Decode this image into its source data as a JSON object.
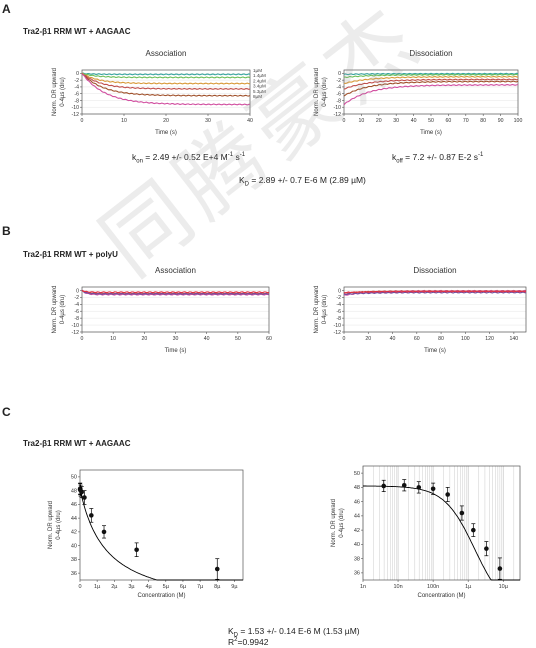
{
  "panels": {
    "A": {
      "letter": "A",
      "title": "Tra2-β1 RRM WT + AAGAAC"
    },
    "B": {
      "letter": "B",
      "title": "Tra2-β1 RRM WT + polyU"
    },
    "C": {
      "letter": "C",
      "title": "Tra2-β1 RRM WT + AAGAAC"
    }
  },
  "equations": {
    "kon": {
      "pre": "k",
      "sub": "on",
      "mid": " = 2.49 +/- 0.52 E+4 M",
      "sup1": "-1",
      "mid2": " s",
      "sup2": "-1"
    },
    "koff": {
      "pre": "k",
      "sub": "off",
      "mid": " = 7.2 +/- 0.87 E-2 s",
      "sup": "-1"
    },
    "kdA": {
      "pre": "K",
      "sub": "D",
      "mid": " = 2.89 +/- 0.7 E-6 M (2.89 µM)"
    },
    "kdC": {
      "pre": "K",
      "sub": "D",
      "mid": " = 1.53 +/- 0.14 E-6 M (1.53 µM)"
    },
    "r2": {
      "pre": "R",
      "sup": "2",
      "mid": "=0.9942"
    }
  },
  "watermark": "同腾豪杰",
  "colors": {
    "fit": "#000000",
    "grid": "#cccccc"
  },
  "chart_data": [
    {
      "id": "A_assoc",
      "type": "line",
      "title": "Association",
      "xlabel": "Time (s)",
      "ylabel": "Norm. DR upward\n0-4µs (dru)",
      "xlim": [
        0,
        40
      ],
      "ylim": [
        -12,
        1
      ],
      "xticks": [
        0,
        10,
        20,
        30,
        40
      ],
      "xtick_labels": [
        "0",
        "10",
        "20",
        "30",
        "40"
      ],
      "yticks": [
        0,
        -2,
        -4,
        -6,
        -8,
        -10,
        -12
      ],
      "ytick_labels": [
        "0",
        "-2",
        "-4",
        "-6",
        "-8",
        "-10",
        "-12"
      ],
      "legend_position": "right",
      "series": [
        {
          "name": "1µM",
          "color": "#3aa6a0",
          "plateau": -0.3,
          "k": 0.35
        },
        {
          "name": "1.4µM",
          "color": "#6fbf5a",
          "plateau": -1.2,
          "k": 0.3
        },
        {
          "name": "2.4µM",
          "color": "#d89a3a",
          "plateau": -3.0,
          "k": 0.25
        },
        {
          "name": "3.4µM",
          "color": "#c0504d",
          "plateau": -4.6,
          "k": 0.22
        },
        {
          "name": "5.3µM",
          "color": "#a0522d",
          "plateau": -6.6,
          "k": 0.2
        },
        {
          "name": "8µM",
          "color": "#d14fa0",
          "plateau": -9.2,
          "k": 0.18
        }
      ]
    },
    {
      "id": "A_dissoc",
      "type": "line",
      "title": "Dissociation",
      "xlabel": "Time (s)",
      "ylabel": "Norm. DR upward\n0-4µs (dru)",
      "xlim": [
        0,
        100
      ],
      "ylim": [
        -12,
        1
      ],
      "xticks": [
        0,
        10,
        20,
        30,
        40,
        50,
        60,
        70,
        80,
        90,
        100
      ],
      "xtick_labels": [
        "0",
        "10",
        "20",
        "30",
        "40",
        "50",
        "60",
        "70",
        "80",
        "90",
        "100"
      ],
      "yticks": [
        0,
        -2,
        -4,
        -6,
        -8,
        -10,
        -12
      ],
      "ytick_labels": [
        "0",
        "-2",
        "-4",
        "-6",
        "-8",
        "-10",
        "-12"
      ],
      "series": [
        {
          "name": "1µM",
          "color": "#3aa6a0",
          "start": -0.3,
          "end": -0.1,
          "k": 0.07
        },
        {
          "name": "1.4µM",
          "color": "#6fbf5a",
          "start": -1.2,
          "end": -0.4,
          "k": 0.07
        },
        {
          "name": "2.4µM",
          "color": "#d89a3a",
          "start": -3.0,
          "end": -1.0,
          "k": 0.07
        },
        {
          "name": "3.4µM",
          "color": "#c0504d",
          "start": -4.6,
          "end": -1.8,
          "k": 0.07
        },
        {
          "name": "5.3µM",
          "color": "#a0522d",
          "start": -6.6,
          "end": -2.4,
          "k": 0.07
        },
        {
          "name": "8µM",
          "color": "#d14fa0",
          "start": -9.2,
          "end": -3.4,
          "k": 0.07
        }
      ]
    },
    {
      "id": "B_assoc",
      "type": "line",
      "title": "Association",
      "xlabel": "Time (s)",
      "ylabel": "Norm. DR upward\n0-4µs (dru)",
      "xlim": [
        0,
        60
      ],
      "ylim": [
        -12,
        1
      ],
      "xticks": [
        0,
        10,
        20,
        30,
        40,
        50,
        60
      ],
      "xtick_labels": [
        "0",
        "10",
        "20",
        "30",
        "40",
        "50",
        "60"
      ],
      "yticks": [
        0,
        -2,
        -4,
        -6,
        -8,
        -10,
        -12
      ],
      "ytick_labels": [
        "0",
        "-2",
        "-4",
        "-6",
        "-8",
        "-10",
        "-12"
      ],
      "series": [
        {
          "color": "#c0504d",
          "plateau": -0.8,
          "k": 0.8
        },
        {
          "color": "#d14fa0",
          "plateau": -1.2,
          "k": 0.8
        },
        {
          "color": "#6f4fa0",
          "plateau": -1.0,
          "k": 0.8
        },
        {
          "color": "#e03040",
          "plateau": -0.5,
          "k": 0.8
        }
      ]
    },
    {
      "id": "B_dissoc",
      "type": "line",
      "title": "Dissociation",
      "xlabel": "Time (s)",
      "ylabel": "Norm. DR upward\n0-4µs (dru)",
      "xlim": [
        0,
        150
      ],
      "ylim": [
        -12,
        1
      ],
      "xticks": [
        0,
        20,
        40,
        60,
        80,
        100,
        120,
        140
      ],
      "xtick_labels": [
        "0",
        "20",
        "40",
        "60",
        "80",
        "100",
        "120",
        "140"
      ],
      "yticks": [
        0,
        -2,
        -4,
        -6,
        -8,
        -10,
        -12
      ],
      "ytick_labels": [
        "0",
        "-2",
        "-4",
        "-6",
        "-8",
        "-10",
        "-12"
      ],
      "series": [
        {
          "color": "#c0504d",
          "start": -0.8,
          "end": -0.1,
          "k": 0.05
        },
        {
          "color": "#d14fa0",
          "start": -1.4,
          "end": -0.2,
          "k": 0.05
        },
        {
          "color": "#6f4fa0",
          "start": -1.1,
          "end": -0.6,
          "k": 0.05
        },
        {
          "color": "#e03040",
          "start": -0.6,
          "end": -0.3,
          "k": 0.05
        }
      ]
    },
    {
      "id": "C_linear",
      "type": "scatter",
      "xlabel": "Concentration (M)",
      "ylabel": "Norm. DR upward\n0-4µs (dru)",
      "xlim": [
        0,
        9.5e-06
      ],
      "ylim": [
        35,
        51
      ],
      "xticks": [
        0,
        1e-06,
        2e-06,
        3e-06,
        4e-06,
        5e-06,
        6e-06,
        7e-06,
        8e-06,
        9e-06
      ],
      "xtick_labels": [
        "0",
        "1µ",
        "2µ",
        "3µ",
        "4µ",
        "5µ",
        "6µ",
        "7µ",
        "8µ",
        "9µ"
      ],
      "yticks": [
        36,
        38,
        40,
        42,
        44,
        46,
        48,
        50
      ],
      "ytick_labels": [
        "36",
        "38",
        "40",
        "42",
        "44",
        "46",
        "48",
        "50"
      ],
      "points": [
        {
          "x": 3.9e-09,
          "y": 48.2,
          "err": 0.8
        },
        {
          "x": 1.5e-08,
          "y": 48.3,
          "err": 0.8
        },
        {
          "x": 3.9e-08,
          "y": 48.0,
          "err": 0.8
        },
        {
          "x": 1e-07,
          "y": 47.8,
          "err": 0.8
        },
        {
          "x": 2.6e-07,
          "y": 47.0,
          "err": 1.0
        },
        {
          "x": 6.6e-07,
          "y": 44.4,
          "err": 1.0
        },
        {
          "x": 1.4e-06,
          "y": 42.0,
          "err": 0.9
        },
        {
          "x": 3.3e-06,
          "y": 39.4,
          "err": 1.0
        },
        {
          "x": 8e-06,
          "y": 36.6,
          "err": 1.5
        }
      ],
      "fit": {
        "top": 48.2,
        "bottom": 30.5,
        "kd": 1.53e-06
      }
    },
    {
      "id": "C_log",
      "type": "scatter",
      "xlabel": "Concentration (M)",
      "ylabel": "Norm. DR upward\n0-4µs (dru)",
      "xscale": "log",
      "xlim": [
        1e-09,
        3e-05
      ],
      "ylim": [
        35,
        51
      ],
      "xticks": [
        1e-09,
        1e-08,
        1e-07,
        1e-06,
        1e-05
      ],
      "xtick_labels": [
        "1n",
        "10n",
        "100n",
        "1µ",
        "10µ"
      ],
      "yticks": [
        36,
        38,
        40,
        42,
        44,
        46,
        48,
        50
      ],
      "ytick_labels": [
        "36",
        "38",
        "40",
        "42",
        "44",
        "46",
        "48",
        "50"
      ],
      "grid": true,
      "points": [
        {
          "x": 3.9e-09,
          "y": 48.2,
          "err": 0.8
        },
        {
          "x": 1.5e-08,
          "y": 48.3,
          "err": 0.8
        },
        {
          "x": 3.9e-08,
          "y": 48.0,
          "err": 0.8
        },
        {
          "x": 1e-07,
          "y": 47.8,
          "err": 0.8
        },
        {
          "x": 2.6e-07,
          "y": 47.0,
          "err": 1.0
        },
        {
          "x": 6.6e-07,
          "y": 44.4,
          "err": 1.0
        },
        {
          "x": 1.4e-06,
          "y": 42.0,
          "err": 0.9
        },
        {
          "x": 3.3e-06,
          "y": 39.4,
          "err": 1.0
        },
        {
          "x": 8e-06,
          "y": 36.6,
          "err": 1.5
        }
      ],
      "fit": {
        "top": 48.2,
        "bottom": 30.5,
        "kd": 1.53e-06
      }
    }
  ]
}
